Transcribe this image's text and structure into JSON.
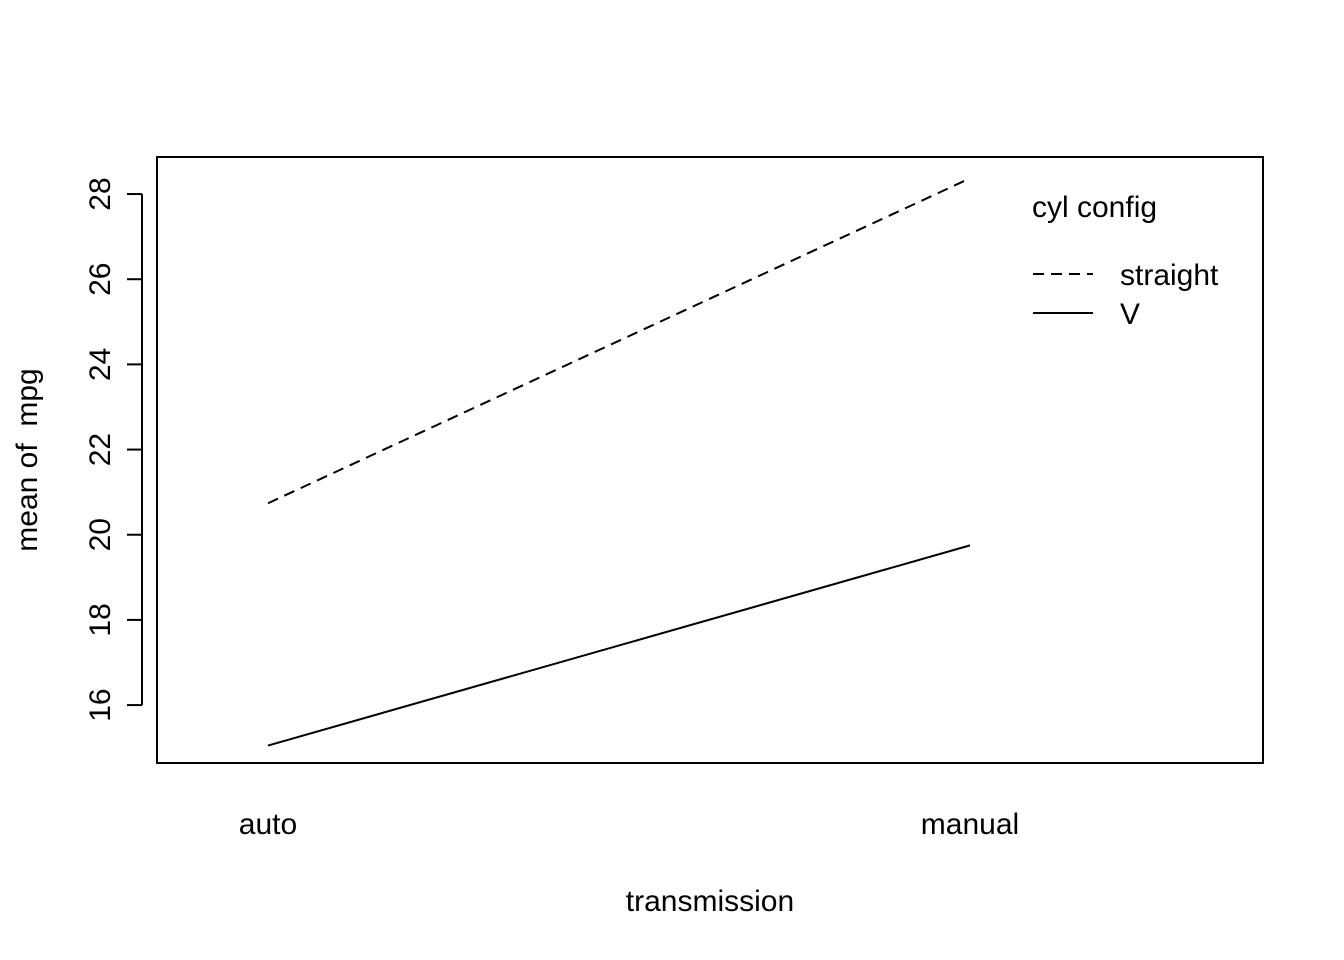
{
  "chart_data": {
    "type": "line",
    "xlabel": "transmission",
    "ylabel": "mean of  mpg",
    "categories": [
      "auto",
      "manual"
    ],
    "yticks": [
      16,
      18,
      20,
      22,
      24,
      26,
      28
    ],
    "ylim": [
      14.64,
      28.87
    ],
    "legend": {
      "title": "cyl config",
      "placement": "top-right"
    },
    "series": [
      {
        "name": "straight",
        "line_style": "dashed",
        "values": [
          20.74,
          28.37
        ]
      },
      {
        "name": "V",
        "line_style": "solid",
        "values": [
          15.05,
          19.75
        ]
      }
    ],
    "colors": {
      "line": "#000000",
      "background": "#ffffff"
    }
  }
}
